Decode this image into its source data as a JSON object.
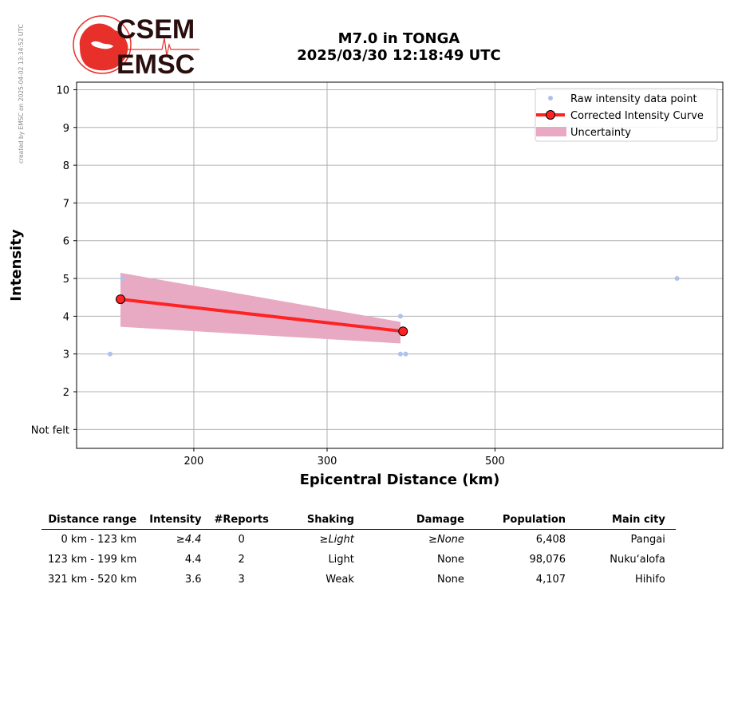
{
  "credit": "created by EMSC on 2025-04-02 13:34:52 UTC",
  "logo": {
    "line1": "CSEM",
    "line2": "EMSC",
    "brand_color": "#e8302a",
    "text_color": "#2a0d0d"
  },
  "title": {
    "line1": "M7.0 in TONGA",
    "line2": "2025/03/30 12:18:49 UTC"
  },
  "chart_data": {
    "type": "line",
    "xlabel": "Epicentral Distance (km)",
    "ylabel": "Intensity",
    "x_scale": "log",
    "xlim": [
      140,
      1000
    ],
    "ylim": [
      0.5,
      10.2
    ],
    "x_ticks": [
      200,
      300,
      500
    ],
    "y_ticks": [
      {
        "value": 1,
        "label": "Not felt"
      },
      {
        "value": 2,
        "label": "2"
      },
      {
        "value": 3,
        "label": "3"
      },
      {
        "value": 4,
        "label": "4"
      },
      {
        "value": 5,
        "label": "5"
      },
      {
        "value": 6,
        "label": "6"
      },
      {
        "value": 7,
        "label": "7"
      },
      {
        "value": 8,
        "label": "8"
      },
      {
        "value": 9,
        "label": "9"
      },
      {
        "value": 10,
        "label": "10"
      }
    ],
    "grid": true,
    "legend_position": "top-right",
    "legend": [
      {
        "label": "Raw intensity data point",
        "kind": "point"
      },
      {
        "label": "Corrected Intensity Curve",
        "kind": "line"
      },
      {
        "label": "Uncertainty",
        "kind": "band"
      }
    ],
    "raw_points": [
      {
        "x": 155,
        "y": 3
      },
      {
        "x": 161,
        "y": 5
      },
      {
        "x": 375,
        "y": 4
      },
      {
        "x": 375,
        "y": 3
      },
      {
        "x": 381,
        "y": 3
      },
      {
        "x": 870,
        "y": 5
      }
    ],
    "curve": [
      {
        "x": 160,
        "y": 4.45
      },
      {
        "x": 378,
        "y": 3.6
      }
    ],
    "uncertainty": {
      "x": [
        160,
        375
      ],
      "upper": [
        5.15,
        3.85
      ],
      "lower": [
        3.72,
        3.28
      ]
    },
    "colors": {
      "raw_point": "#aec1ec",
      "curve": "#ff2222",
      "curve_marker_edge": "#000000",
      "band": "#e8a9c3",
      "grid": "#b0b0b0"
    }
  },
  "table": {
    "headers": [
      "Distance range",
      "Intensity",
      "#Reports",
      "Shaking",
      "Damage",
      "Population",
      "Main city"
    ],
    "rows": [
      {
        "distance": "0 km -  123 km",
        "intensity": "≥4.4",
        "reports": "0",
        "shaking": "≥Light",
        "damage": "≥None",
        "population": "6,408",
        "city": "Pangai"
      },
      {
        "distance": "123 km -  199 km",
        "intensity": "4.4",
        "reports": "2",
        "shaking": "Light",
        "damage": "None",
        "population": "98,076",
        "city": "Nuku‘alofa"
      },
      {
        "distance": "321 km -  520 km",
        "intensity": "3.6",
        "reports": "3",
        "shaking": "Weak",
        "damage": "None",
        "population": "4,107",
        "city": "Hihifo"
      }
    ]
  }
}
